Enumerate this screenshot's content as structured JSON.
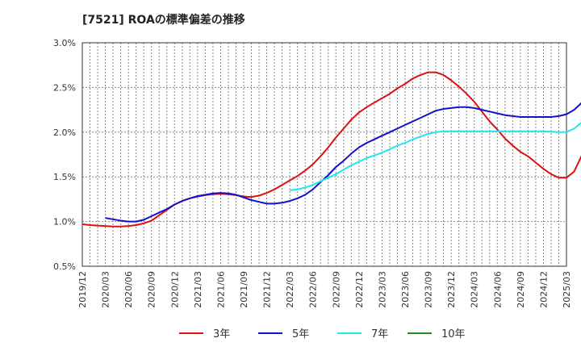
{
  "chart_data": {
    "type": "line",
    "title": "[7521]  ROAの標準偏差の推移",
    "xlabel": "",
    "ylabel": "",
    "ylim": [
      0.5,
      3.0
    ],
    "y_ticks": [
      "0.5%",
      "1.0%",
      "1.5%",
      "2.0%",
      "2.5%",
      "3.0%"
    ],
    "x_ticks": [
      "2019/12",
      "2020/03",
      "2020/06",
      "2020/09",
      "2020/12",
      "2021/03",
      "2021/06",
      "2021/09",
      "2021/12",
      "2022/03",
      "2022/06",
      "2022/09",
      "2022/12",
      "2023/03",
      "2023/06",
      "2023/09",
      "2023/12",
      "2024/03",
      "2024/06",
      "2024/09",
      "2024/12",
      "2025/03"
    ],
    "grid": true,
    "legend_position": "bottom",
    "series": [
      {
        "name": "3年",
        "color": "#dd1111",
        "points": [
          [
            "2019/12",
            0.97
          ],
          [
            "2020/01",
            0.96
          ],
          [
            "2020/02",
            0.955
          ],
          [
            "2020/03",
            0.95
          ],
          [
            "2020/04",
            0.945
          ],
          [
            "2020/05",
            0.945
          ],
          [
            "2020/06",
            0.95
          ],
          [
            "2020/07",
            0.96
          ],
          [
            "2020/08",
            0.98
          ],
          [
            "2020/09",
            1.01
          ],
          [
            "2020/10",
            1.07
          ],
          [
            "2020/11",
            1.13
          ],
          [
            "2020/12",
            1.19
          ],
          [
            "2021/01",
            1.23
          ],
          [
            "2021/02",
            1.26
          ],
          [
            "2021/03",
            1.28
          ],
          [
            "2021/04",
            1.295
          ],
          [
            "2021/05",
            1.305
          ],
          [
            "2021/06",
            1.31
          ],
          [
            "2021/07",
            1.305
          ],
          [
            "2021/08",
            1.295
          ],
          [
            "2021/09",
            1.28
          ],
          [
            "2021/10",
            1.275
          ],
          [
            "2021/11",
            1.29
          ],
          [
            "2021/12",
            1.32
          ],
          [
            "2022/01",
            1.36
          ],
          [
            "2022/02",
            1.41
          ],
          [
            "2022/03",
            1.46
          ],
          [
            "2022/04",
            1.51
          ],
          [
            "2022/05",
            1.57
          ],
          [
            "2022/06",
            1.64
          ],
          [
            "2022/07",
            1.73
          ],
          [
            "2022/08",
            1.83
          ],
          [
            "2022/09",
            1.94
          ],
          [
            "2022/10",
            2.04
          ],
          [
            "2022/11",
            2.14
          ],
          [
            "2022/12",
            2.22
          ],
          [
            "2023/01",
            2.28
          ],
          [
            "2023/02",
            2.33
          ],
          [
            "2023/03",
            2.38
          ],
          [
            "2023/04",
            2.43
          ],
          [
            "2023/05",
            2.49
          ],
          [
            "2023/06",
            2.54
          ],
          [
            "2023/07",
            2.6
          ],
          [
            "2023/08",
            2.64
          ],
          [
            "2023/09",
            2.67
          ],
          [
            "2023/10",
            2.67
          ],
          [
            "2023/11",
            2.64
          ],
          [
            "2023/12",
            2.58
          ],
          [
            "2024/01",
            2.51
          ],
          [
            "2024/02",
            2.43
          ],
          [
            "2024/03",
            2.34
          ],
          [
            "2024/04",
            2.23
          ],
          [
            "2024/05",
            2.12
          ],
          [
            "2024/06",
            2.03
          ],
          [
            "2024/07",
            1.93
          ],
          [
            "2024/08",
            1.85
          ],
          [
            "2024/09",
            1.78
          ],
          [
            "2024/10",
            1.73
          ],
          [
            "2024/11",
            1.66
          ],
          [
            "2024/12",
            1.59
          ],
          [
            "2025/01",
            1.53
          ],
          [
            "2025/02",
            1.49
          ],
          [
            "2025/03",
            1.49
          ],
          [
            "2025/04",
            1.56
          ],
          [
            "2025/05",
            1.74
          ]
        ]
      },
      {
        "name": "5年",
        "color": "#1111cc",
        "points": [
          [
            "2020/03",
            1.04
          ],
          [
            "2020/04",
            1.025
          ],
          [
            "2020/05",
            1.01
          ],
          [
            "2020/06",
            1.0
          ],
          [
            "2020/07",
            1.0
          ],
          [
            "2020/08",
            1.02
          ],
          [
            "2020/09",
            1.06
          ],
          [
            "2020/10",
            1.1
          ],
          [
            "2020/11",
            1.14
          ],
          [
            "2020/12",
            1.19
          ],
          [
            "2021/01",
            1.23
          ],
          [
            "2021/02",
            1.26
          ],
          [
            "2021/03",
            1.285
          ],
          [
            "2021/04",
            1.3
          ],
          [
            "2021/05",
            1.315
          ],
          [
            "2021/06",
            1.32
          ],
          [
            "2021/07",
            1.315
          ],
          [
            "2021/08",
            1.3
          ],
          [
            "2021/09",
            1.27
          ],
          [
            "2021/10",
            1.24
          ],
          [
            "2021/11",
            1.22
          ],
          [
            "2021/12",
            1.2
          ],
          [
            "2022/01",
            1.2
          ],
          [
            "2022/02",
            1.21
          ],
          [
            "2022/03",
            1.23
          ],
          [
            "2022/04",
            1.26
          ],
          [
            "2022/05",
            1.3
          ],
          [
            "2022/06",
            1.36
          ],
          [
            "2022/07",
            1.44
          ],
          [
            "2022/08",
            1.52
          ],
          [
            "2022/09",
            1.61
          ],
          [
            "2022/10",
            1.68
          ],
          [
            "2022/11",
            1.76
          ],
          [
            "2022/12",
            1.83
          ],
          [
            "2023/01",
            1.88
          ],
          [
            "2023/02",
            1.92
          ],
          [
            "2023/03",
            1.96
          ],
          [
            "2023/04",
            2.0
          ],
          [
            "2023/05",
            2.04
          ],
          [
            "2023/06",
            2.08
          ],
          [
            "2023/07",
            2.12
          ],
          [
            "2023/08",
            2.16
          ],
          [
            "2023/09",
            2.2
          ],
          [
            "2023/10",
            2.24
          ],
          [
            "2023/11",
            2.26
          ],
          [
            "2023/12",
            2.27
          ],
          [
            "2024/01",
            2.28
          ],
          [
            "2024/02",
            2.28
          ],
          [
            "2024/03",
            2.27
          ],
          [
            "2024/04",
            2.25
          ],
          [
            "2024/05",
            2.23
          ],
          [
            "2024/06",
            2.21
          ],
          [
            "2024/07",
            2.19
          ],
          [
            "2024/08",
            2.18
          ],
          [
            "2024/09",
            2.17
          ],
          [
            "2024/10",
            2.17
          ],
          [
            "2024/11",
            2.17
          ],
          [
            "2024/12",
            2.17
          ],
          [
            "2025/01",
            2.17
          ],
          [
            "2025/02",
            2.18
          ],
          [
            "2025/03",
            2.2
          ],
          [
            "2025/04",
            2.25
          ],
          [
            "2025/05",
            2.33
          ],
          [
            "2025/06",
            2.45
          ]
        ]
      },
      {
        "name": "7年",
        "color": "#22e5f0",
        "points": [
          [
            "2022/03",
            1.35
          ],
          [
            "2022/04",
            1.36
          ],
          [
            "2022/05",
            1.38
          ],
          [
            "2022/06",
            1.41
          ],
          [
            "2022/07",
            1.45
          ],
          [
            "2022/08",
            1.49
          ],
          [
            "2022/09",
            1.53
          ],
          [
            "2022/10",
            1.58
          ],
          [
            "2022/11",
            1.63
          ],
          [
            "2022/12",
            1.67
          ],
          [
            "2023/01",
            1.71
          ],
          [
            "2023/02",
            1.74
          ],
          [
            "2023/03",
            1.77
          ],
          [
            "2023/04",
            1.81
          ],
          [
            "2023/05",
            1.85
          ],
          [
            "2023/06",
            1.88
          ],
          [
            "2023/07",
            1.92
          ],
          [
            "2023/08",
            1.95
          ],
          [
            "2023/09",
            1.98
          ],
          [
            "2023/10",
            2.0
          ],
          [
            "2023/11",
            2.01
          ],
          [
            "2023/12",
            2.01
          ],
          [
            "2024/01",
            2.01
          ],
          [
            "2024/02",
            2.01
          ],
          [
            "2024/03",
            2.01
          ],
          [
            "2024/04",
            2.01
          ],
          [
            "2024/05",
            2.01
          ],
          [
            "2024/06",
            2.01
          ],
          [
            "2024/07",
            2.01
          ],
          [
            "2024/08",
            2.01
          ],
          [
            "2024/09",
            2.01
          ],
          [
            "2024/10",
            2.01
          ],
          [
            "2024/11",
            2.01
          ],
          [
            "2024/12",
            2.01
          ],
          [
            "2025/01",
            2.005
          ],
          [
            "2025/02",
            2.0
          ],
          [
            "2025/03",
            2.0
          ],
          [
            "2025/04",
            2.04
          ],
          [
            "2025/05",
            2.11
          ],
          [
            "2025/06",
            2.22
          ]
        ]
      },
      {
        "name": "10年",
        "color": "#228b22",
        "points": []
      }
    ]
  }
}
